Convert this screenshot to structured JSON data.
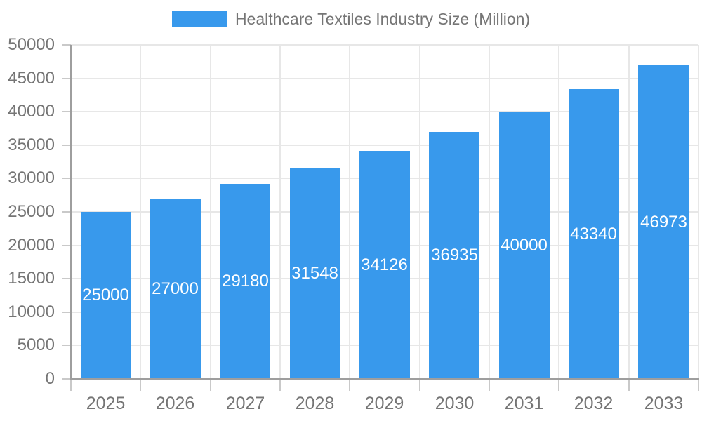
{
  "chart_data": {
    "type": "bar",
    "title": "Healthcare Textiles Industry Size (Million)",
    "legend_position": "top",
    "categories": [
      "2025",
      "2026",
      "2027",
      "2028",
      "2029",
      "2030",
      "2031",
      "2032",
      "2033"
    ],
    "values": [
      25000,
      27000,
      29180,
      31548,
      34126,
      36935,
      40000,
      43340,
      46973
    ],
    "bar_value_labels": [
      "25000",
      "27000",
      "29180",
      "31548",
      "34126",
      "36935",
      "40000",
      "43340",
      "46973"
    ],
    "ylim": [
      0,
      50000
    ],
    "ytick_step": 5000,
    "ytick_labels": [
      "0",
      "5000",
      "10000",
      "15000",
      "20000",
      "25000",
      "30000",
      "35000",
      "40000",
      "45000",
      "50000"
    ],
    "xlabel": "",
    "ylabel": "",
    "grid": true,
    "colors": {
      "bar": "#3899ec",
      "bar_label": "#ffffff",
      "axis_label": "#757575",
      "grid_line": "#e7e7e7",
      "tick_line": "#c9c9c9",
      "axis_line": "#9e9e9e",
      "background": "#ffffff"
    }
  }
}
